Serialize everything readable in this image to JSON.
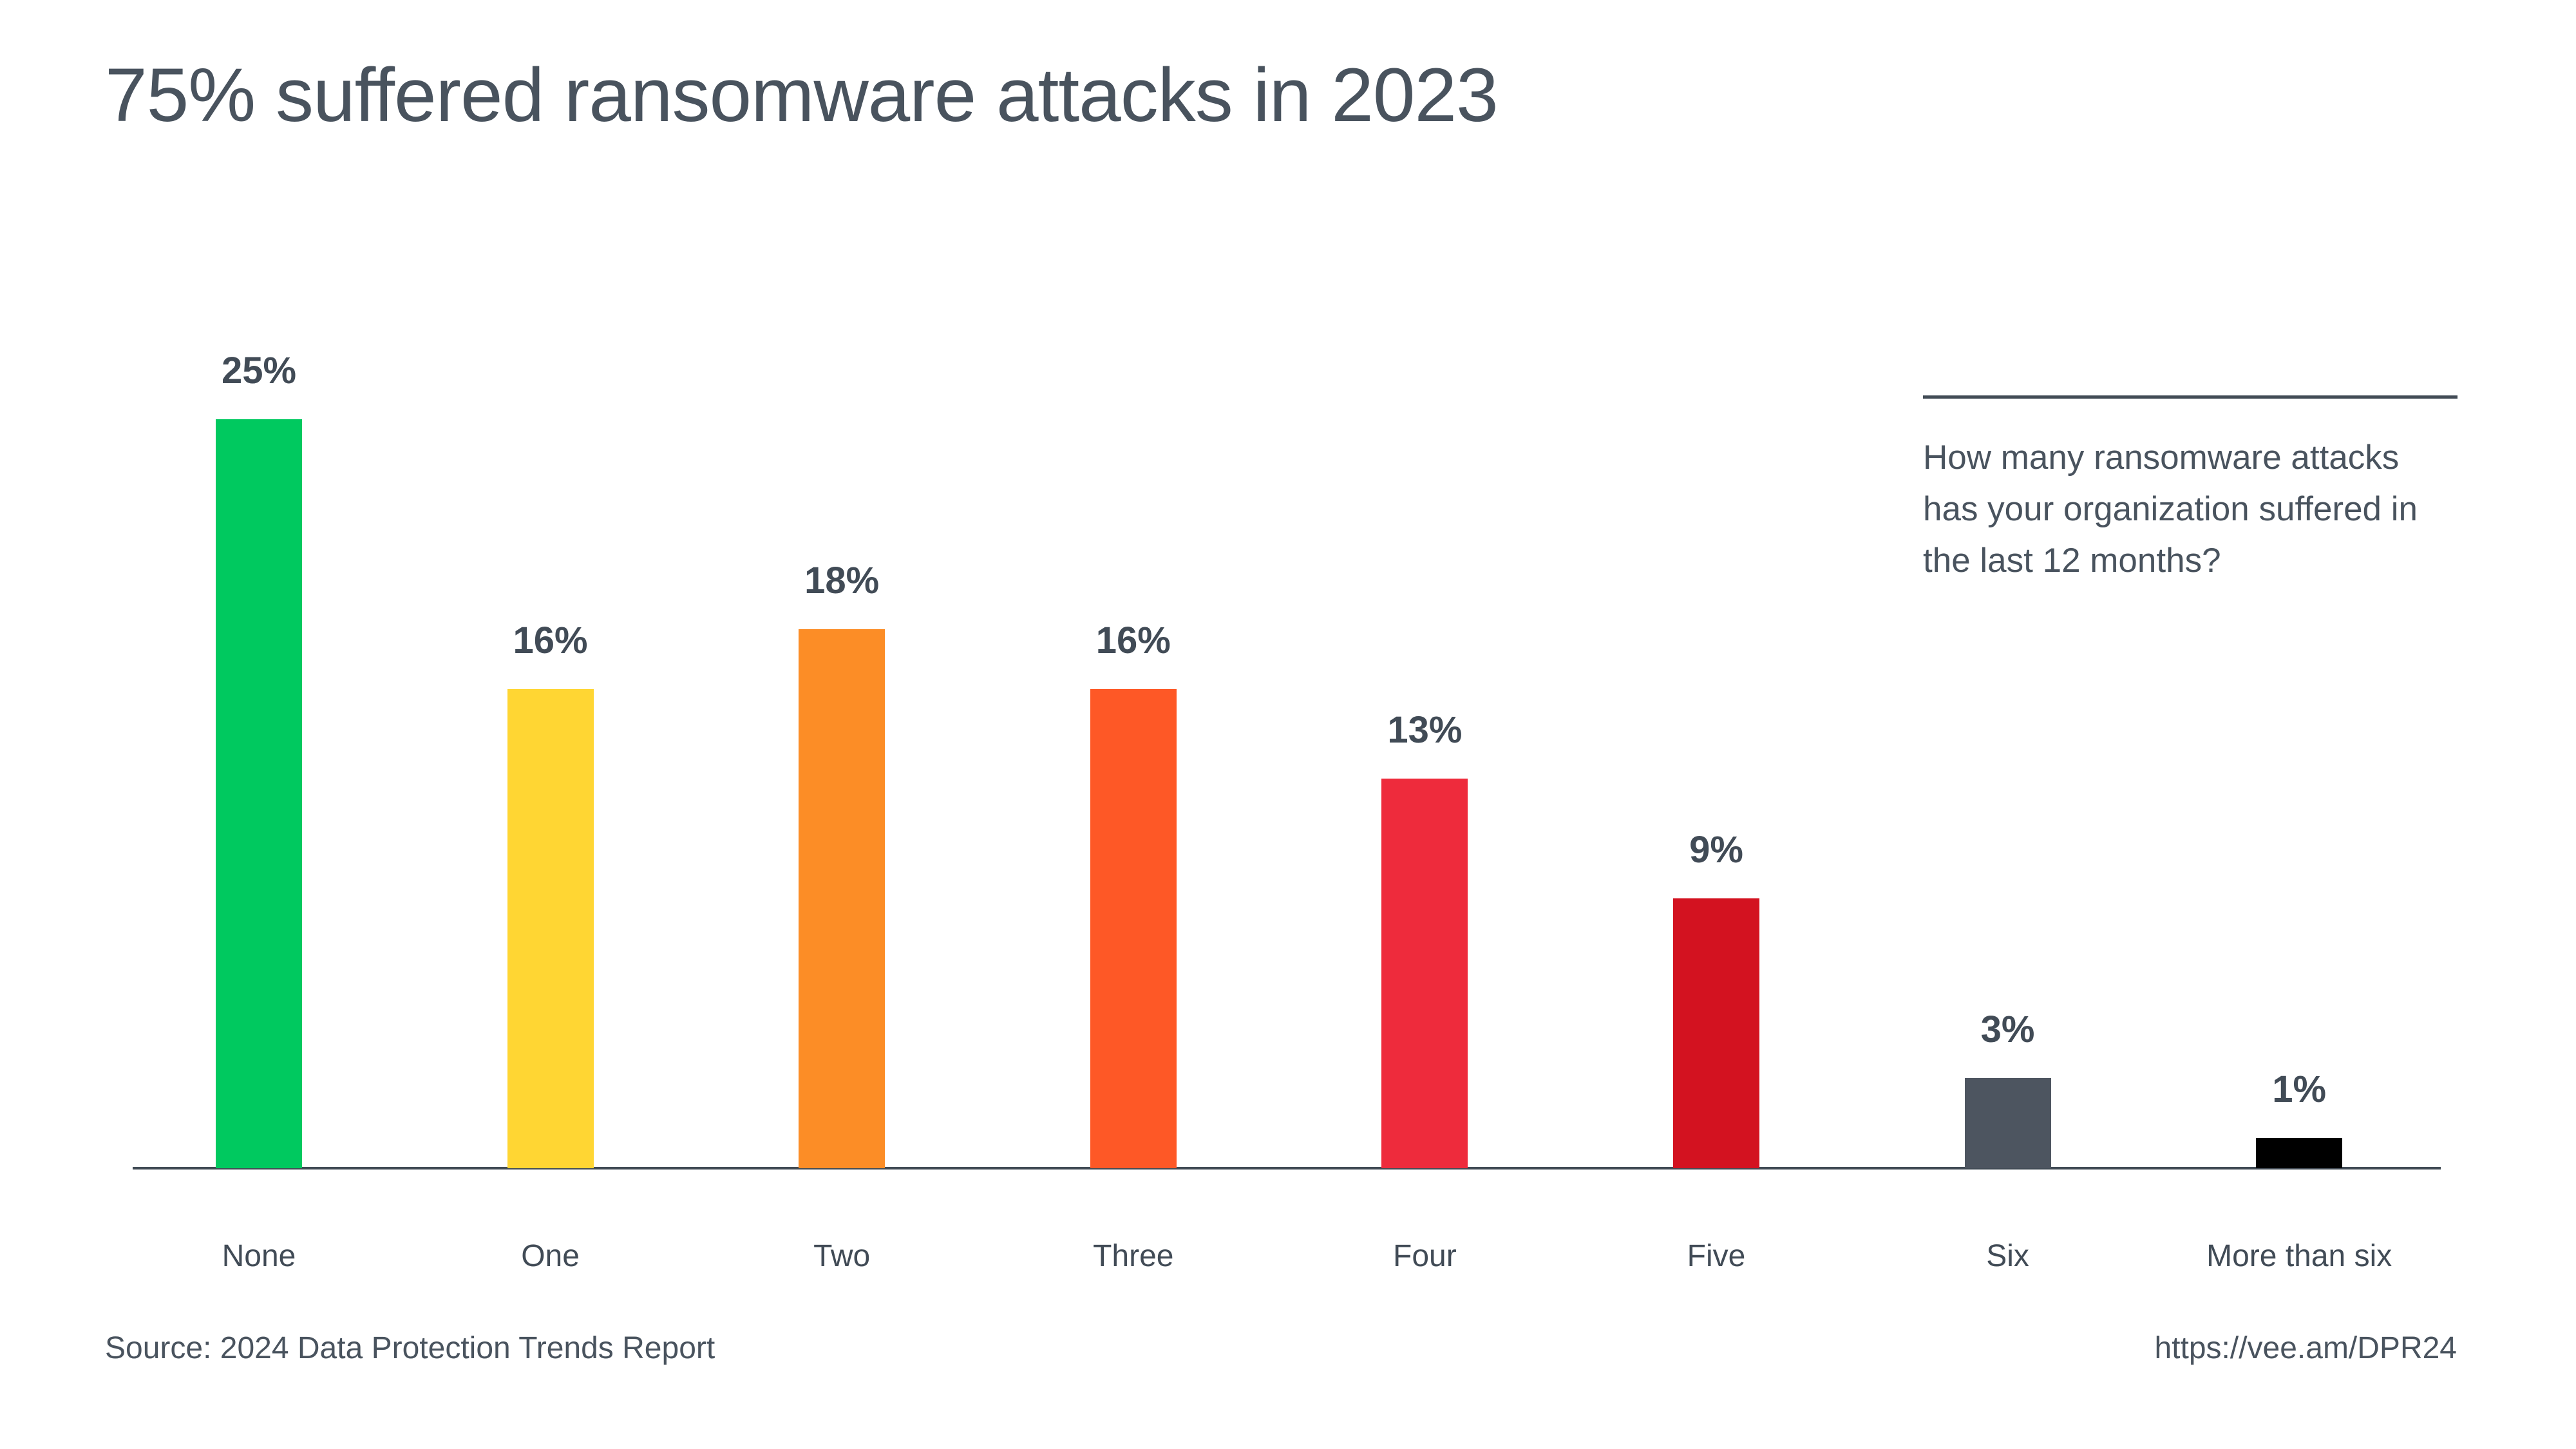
{
  "header": {
    "title": "75% suffered ransomware attacks in 2023"
  },
  "annotation": {
    "lines": [
      "How many ransomware attacks",
      "has your organization suffered in",
      "the last 12 months?"
    ]
  },
  "footer": {
    "source": "Source: 2024 Data Protection Trends Report",
    "link": "https://vee.am/DPR24"
  },
  "colors": {
    "text": "#49535e",
    "axis": "#414b55",
    "background": "#ffffff"
  },
  "chart_data": {
    "type": "bar",
    "title": "75% suffered ransomware attacks in 2023",
    "question": "How many ransomware attacks has your organization suffered in the last 12 months?",
    "categories": [
      "None",
      "One",
      "Two",
      "Three",
      "Four",
      "Five",
      "Six",
      "More than six"
    ],
    "values": [
      25,
      16,
      18,
      16,
      13,
      9,
      3,
      1
    ],
    "value_labels": [
      "25%",
      "16%",
      "18%",
      "16%",
      "13%",
      "9%",
      "3%",
      "1%"
    ],
    "bar_colors": [
      "#00c95f",
      "#ffd633",
      "#fc8d26",
      "#fe5826",
      "#ee2b3c",
      "#d31220",
      "#4d5560",
      "#000000"
    ],
    "xlabel": "",
    "ylabel": "",
    "ylim": [
      0,
      25
    ],
    "grid": false,
    "legend": false,
    "data_labels": true
  }
}
